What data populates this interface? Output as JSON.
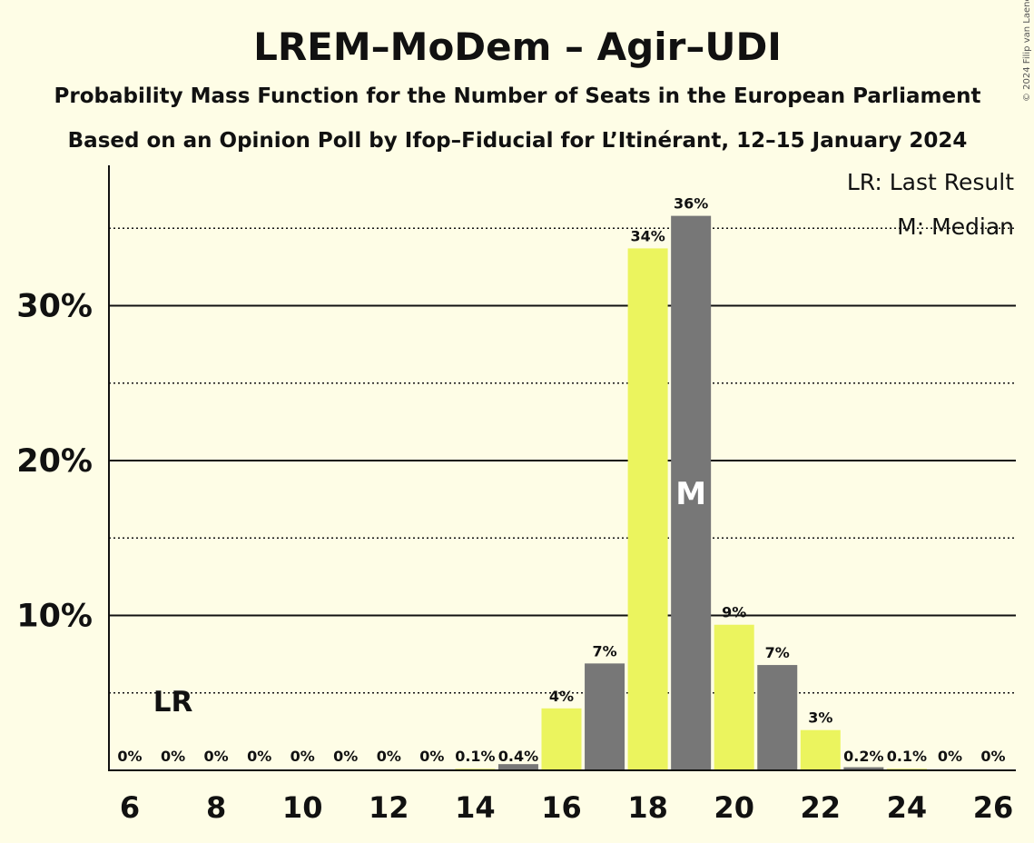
{
  "colors": {
    "background": "#fefde6",
    "bar_yellow": "#ebf45e",
    "bar_grey": "#777777",
    "text": "#111111"
  },
  "copyright": "© 2024 Filip van Laenen",
  "legend": {
    "lr": "LR: Last Result",
    "median": "M: Median"
  },
  "chart_data": {
    "type": "bar",
    "title": "LREM–MoDem – Agir–UDI",
    "subtitle": "Probability Mass Function for the Number of Seats in the European Parliament",
    "subtitle2": "Based on an Opinion Poll by Ifop–Fiducial for L’Itinérant, 12–15 January 2024",
    "xlabel": "",
    "ylabel": "",
    "categories": [
      6,
      7,
      8,
      9,
      10,
      11,
      12,
      13,
      14,
      15,
      16,
      17,
      18,
      19,
      20,
      21,
      22,
      23,
      24,
      25,
      26
    ],
    "values": [
      0,
      0,
      0,
      0,
      0,
      0,
      0,
      0,
      0.1,
      0.4,
      4.0,
      6.9,
      33.7,
      35.8,
      9.4,
      6.8,
      2.6,
      0.2,
      0.1,
      0,
      0
    ],
    "value_labels": [
      "0%",
      "0%",
      "0%",
      "0%",
      "0%",
      "0%",
      "0%",
      "0%",
      "0.1%",
      "0.4%",
      "4%",
      "7%",
      "34%",
      "36%",
      "9%",
      "7%",
      "3%",
      "0.2%",
      "0.1%",
      "0%",
      "0%"
    ],
    "bar_colors": [
      "yellow",
      "grey",
      "yellow",
      "grey",
      "yellow",
      "grey",
      "yellow",
      "grey",
      "yellow",
      "grey",
      "yellow",
      "grey",
      "yellow",
      "grey",
      "yellow",
      "grey",
      "yellow",
      "grey",
      "yellow",
      "grey",
      "yellow"
    ],
    "xticks": [
      "6",
      "8",
      "10",
      "12",
      "14",
      "16",
      "18",
      "20",
      "22",
      "24",
      "26"
    ],
    "yticks": [
      10,
      20,
      30
    ],
    "ytick_labels": [
      "10%",
      "20%",
      "30%"
    ],
    "ylim": [
      0,
      39
    ],
    "dotted_gridlines": [
      5,
      15,
      25,
      35
    ],
    "last_result": {
      "seats": 7,
      "label": "LR"
    },
    "median": {
      "seats": 19,
      "label": "M"
    }
  }
}
